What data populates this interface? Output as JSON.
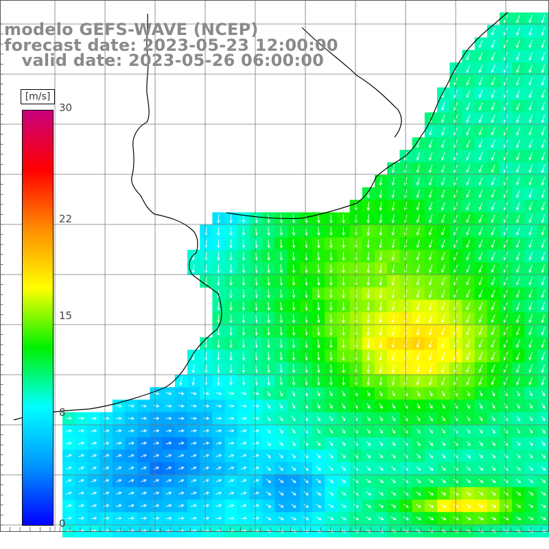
{
  "title": {
    "line1": "modelo GEFS-WAVE (NCEP)",
    "line2": "forecast date: 2023-05-23 12:00:00",
    "line3": "   valid date: 2023-05-26 06:00:00"
  },
  "colorbar": {
    "unit": "[m/s]",
    "ticks": [
      {
        "value": 30,
        "label": "30"
      },
      {
        "value": 22,
        "label": "22"
      },
      {
        "value": 15,
        "label": "15"
      },
      {
        "value": 8,
        "label": "8"
      },
      {
        "value": 0,
        "label": "0"
      }
    ],
    "min": 0,
    "max": 30,
    "colors": [
      "#0000ff",
      "#0096ff",
      "#00ffff",
      "#00f000",
      "#ffff00",
      "#ff8c00",
      "#ff0000",
      "#c8007d"
    ]
  },
  "map": {
    "land_color": "#ffffff",
    "coast_color": "#000000",
    "grid_color": "#777777",
    "arrow_color": "#ffffff"
  }
}
